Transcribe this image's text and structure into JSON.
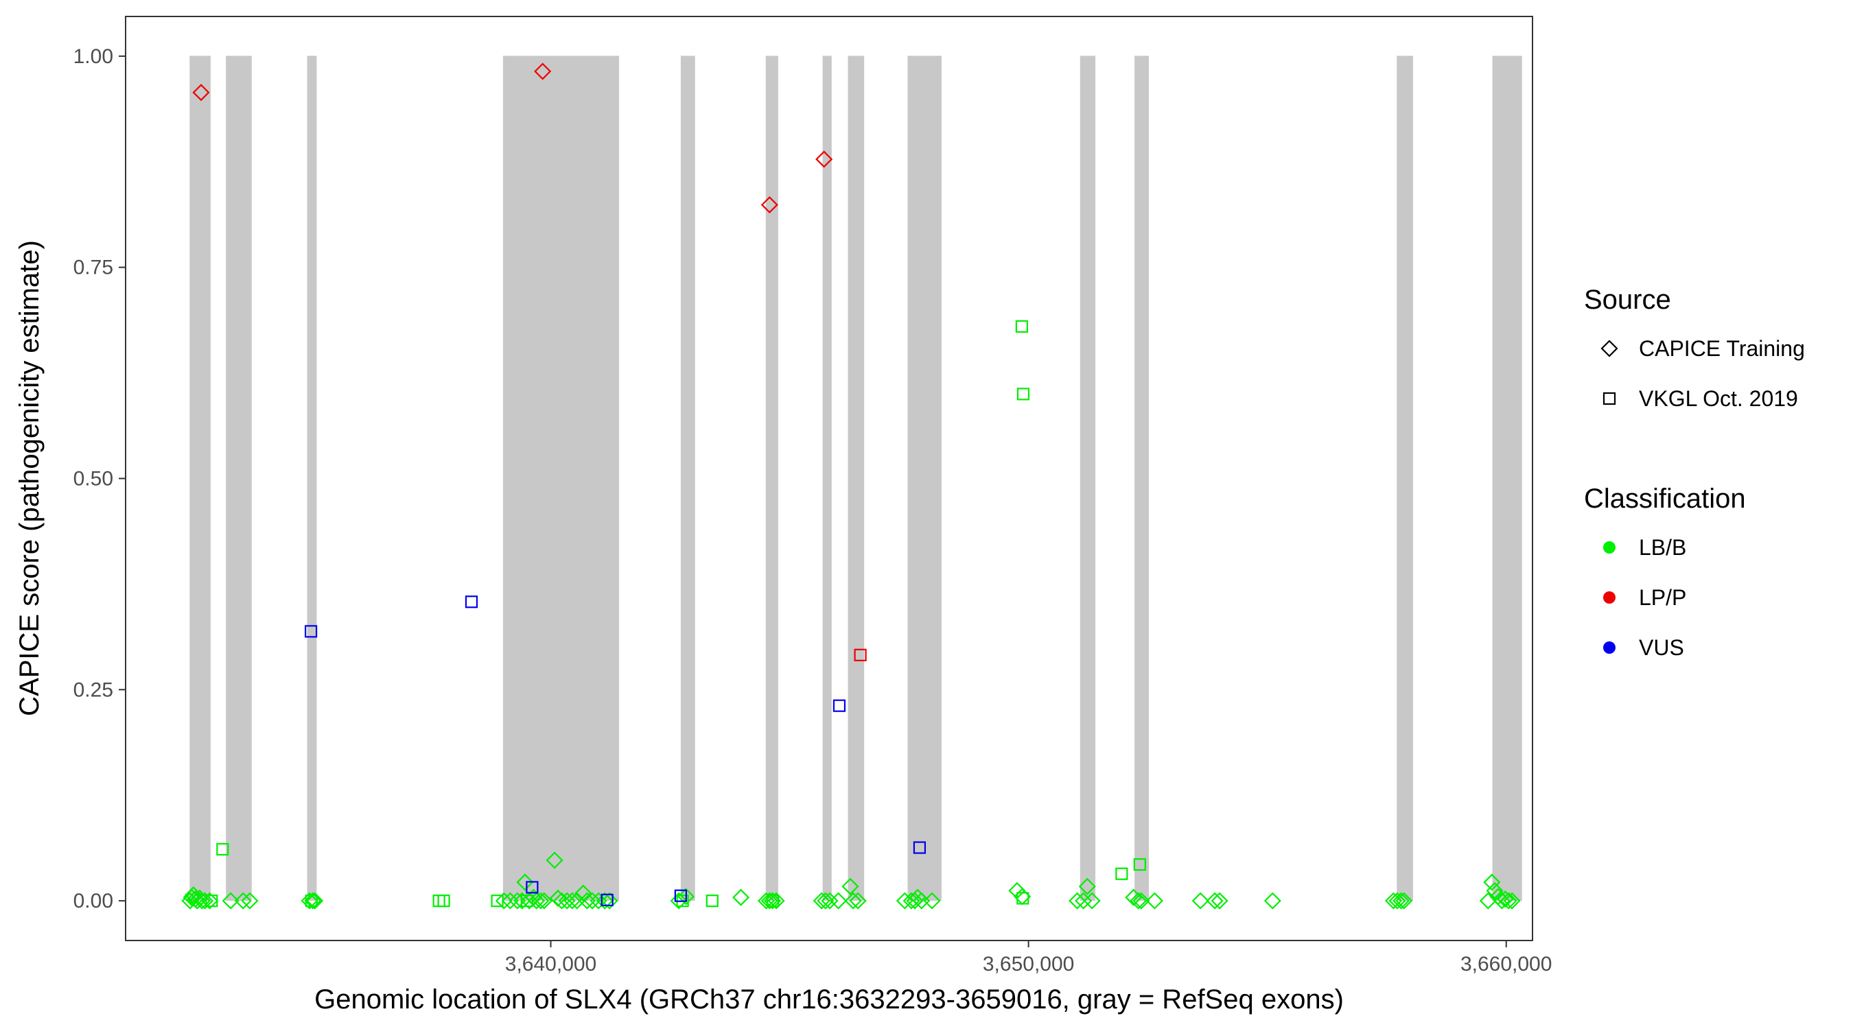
{
  "chart_data": {
    "type": "scatter",
    "xlabel": "Genomic location of SLX4 (GRCh37 chr16:3632293-3659016, gray = RefSeq exons)",
    "ylabel": "CAPICE score (pathogenicity estimate)",
    "xlim": [
      3631100,
      3660550
    ],
    "ylim": [
      -0.047,
      1.047
    ],
    "x_ticks": [
      3640000,
      3650000,
      3660000
    ],
    "x_tick_labels": [
      "3,640,000",
      "3,650,000",
      "3,660,000"
    ],
    "y_ticks": [
      0,
      0.25,
      0.5,
      0.75,
      1.0
    ],
    "y_tick_labels": [
      "0.00",
      "0.25",
      "0.50",
      "0.75",
      "1.00"
    ],
    "grid": false,
    "legend_position": "right",
    "exons": [
      [
        3632440,
        3632880
      ],
      [
        3633200,
        3633740
      ],
      [
        3634900,
        3635100
      ],
      [
        3639000,
        3641430
      ],
      [
        3642720,
        3643020
      ],
      [
        3644500,
        3644760
      ],
      [
        3645690,
        3645880
      ],
      [
        3646220,
        3646560
      ],
      [
        3647470,
        3648180
      ],
      [
        3651080,
        3651400
      ],
      [
        3652220,
        3652520
      ],
      [
        3657710,
        3658050
      ],
      [
        3659710,
        3660330
      ]
    ],
    "exon_color": "#c8c8c8",
    "legends": {
      "source": {
        "title": "Source",
        "items": [
          {
            "label": "CAPICE Training",
            "shape": "diamond"
          },
          {
            "label": "VKGL Oct. 2019",
            "shape": "square"
          }
        ]
      },
      "classification": {
        "title": "Classification",
        "items": [
          {
            "label": "LB/B",
            "color": "#00ee00"
          },
          {
            "label": "LP/P",
            "color": "#ee0000"
          },
          {
            "label": "VUS",
            "color": "#0000ee"
          }
        ]
      }
    },
    "series": [
      {
        "source": "CAPICE Training",
        "classification": "LB/B",
        "points": [
          [
            3632450,
            0.0
          ],
          [
            3632480,
            0.004
          ],
          [
            3632520,
            0.007
          ],
          [
            3632560,
            0.002
          ],
          [
            3632600,
            0.0
          ],
          [
            3632650,
            0.003
          ],
          [
            3632700,
            0.0
          ],
          [
            3632760,
            0.0
          ],
          [
            3632860,
            0.0
          ],
          [
            3633300,
            0.0
          ],
          [
            3633560,
            0.0
          ],
          [
            3633700,
            0.0
          ],
          [
            3634950,
            0.0
          ],
          [
            3635020,
            0.0
          ],
          [
            3635060,
            0.0
          ],
          [
            3639020,
            0.0
          ],
          [
            3639150,
            0.0
          ],
          [
            3639300,
            0.0
          ],
          [
            3639400,
            0.0
          ],
          [
            3639460,
            0.022
          ],
          [
            3639550,
            0.0
          ],
          [
            3639640,
            0.004
          ],
          [
            3639700,
            0.0
          ],
          [
            3639790,
            0.0
          ],
          [
            3639860,
            0.0
          ],
          [
            3640080,
            0.048
          ],
          [
            3640150,
            0.003
          ],
          [
            3640230,
            0.0
          ],
          [
            3640340,
            0.0
          ],
          [
            3640450,
            0.0
          ],
          [
            3640550,
            0.0
          ],
          [
            3640680,
            0.009
          ],
          [
            3640760,
            0.0
          ],
          [
            3640870,
            0.0
          ],
          [
            3641000,
            0.0
          ],
          [
            3641130,
            0.0
          ],
          [
            3641230,
            0.0
          ],
          [
            3642680,
            0.0
          ],
          [
            3642830,
            0.005
          ],
          [
            3643980,
            0.004
          ],
          [
            3644510,
            0.0
          ],
          [
            3644580,
            0.0
          ],
          [
            3644640,
            0.0
          ],
          [
            3644720,
            0.0
          ],
          [
            3645670,
            0.0
          ],
          [
            3645750,
            0.0
          ],
          [
            3645840,
            0.0
          ],
          [
            3646020,
            0.0
          ],
          [
            3646270,
            0.017
          ],
          [
            3646330,
            0.0
          ],
          [
            3646430,
            0.0
          ],
          [
            3647410,
            0.0
          ],
          [
            3647550,
            0.0
          ],
          [
            3647620,
            0.0
          ],
          [
            3647680,
            0.004
          ],
          [
            3647760,
            0.0
          ],
          [
            3647980,
            0.0
          ],
          [
            3649760,
            0.012
          ],
          [
            3649870,
            0.005
          ],
          [
            3651020,
            0.0
          ],
          [
            3651150,
            0.0
          ],
          [
            3651230,
            0.017
          ],
          [
            3651330,
            0.0
          ],
          [
            3652200,
            0.004
          ],
          [
            3652300,
            0.0
          ],
          [
            3652360,
            0.0
          ],
          [
            3652640,
            0.0
          ],
          [
            3653600,
            0.0
          ],
          [
            3653900,
            0.0
          ],
          [
            3654000,
            0.0
          ],
          [
            3655110,
            0.0
          ],
          [
            3657640,
            0.0
          ],
          [
            3657720,
            0.0
          ],
          [
            3657800,
            0.0
          ],
          [
            3657860,
            0.0
          ],
          [
            3659620,
            0.0
          ],
          [
            3659700,
            0.022
          ],
          [
            3659760,
            0.012
          ],
          [
            3659830,
            0.005
          ],
          [
            3659910,
            0.0
          ],
          [
            3659980,
            0.002
          ],
          [
            3660050,
            0.0
          ],
          [
            3660120,
            0.0
          ]
        ]
      },
      {
        "source": "CAPICE Training",
        "classification": "LP/P",
        "points": [
          [
            3632680,
            0.957
          ],
          [
            3639830,
            0.982
          ],
          [
            3644580,
            0.824
          ],
          [
            3645720,
            0.878
          ]
        ]
      },
      {
        "source": "VKGL Oct. 2019",
        "classification": "LB/B",
        "points": [
          [
            3632900,
            0.0
          ],
          [
            3633130,
            0.061
          ],
          [
            3634990,
            0.0
          ],
          [
            3637660,
            0.0
          ],
          [
            3637760,
            0.0
          ],
          [
            3638880,
            0.0
          ],
          [
            3642760,
            0.0
          ],
          [
            3643380,
            0.0
          ],
          [
            3644650,
            0.0
          ],
          [
            3649860,
            0.68
          ],
          [
            3649890,
            0.6
          ],
          [
            3649880,
            0.003
          ],
          [
            3651950,
            0.032
          ],
          [
            3652330,
            0.043
          ],
          [
            3639500,
            0.0
          ]
        ]
      },
      {
        "source": "VKGL Oct. 2019",
        "classification": "LP/P",
        "points": [
          [
            3646480,
            0.291
          ]
        ]
      },
      {
        "source": "VKGL Oct. 2019",
        "classification": "VUS",
        "points": [
          [
            3634980,
            0.319
          ],
          [
            3638340,
            0.354
          ],
          [
            3639610,
            0.016
          ],
          [
            3641180,
            0.001
          ],
          [
            3642720,
            0.006
          ],
          [
            3646040,
            0.231
          ],
          [
            3647720,
            0.063
          ]
        ]
      }
    ]
  }
}
